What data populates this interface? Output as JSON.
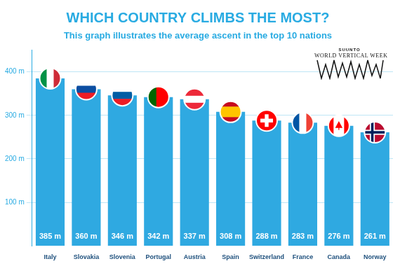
{
  "chart_data": {
    "type": "bar",
    "title": "WHICH COUNTRY CLIMBS THE MOST?",
    "subtitle": "This graph illustrates the average ascent in the top 10 nations",
    "annotations": [
      "SUUNTO",
      "WORLD VERTICAL WEEK"
    ],
    "categories": [
      "Italy",
      "Slovakia",
      "Slovenia",
      "Portugal",
      "Austria",
      "Spain",
      "Switzerland",
      "France",
      "Canada",
      "Norway"
    ],
    "values": [
      385,
      360,
      346,
      342,
      337,
      308,
      288,
      283,
      276,
      261
    ],
    "value_labels": [
      "385 m",
      "360 m",
      "346 m",
      "342 m",
      "337 m",
      "308 m",
      "288 m",
      "283 m",
      "276 m",
      "261 m"
    ],
    "data_labels": true,
    "color": "#2fa9e1",
    "ylim": [
      0,
      450
    ],
    "yticks": [
      {
        "value": 100,
        "label": "100 m"
      },
      {
        "value": 200,
        "label": "200 m"
      },
      {
        "value": 300,
        "label": "300 m"
      },
      {
        "value": 400,
        "label": "400 m"
      }
    ],
    "grid": true
  }
}
